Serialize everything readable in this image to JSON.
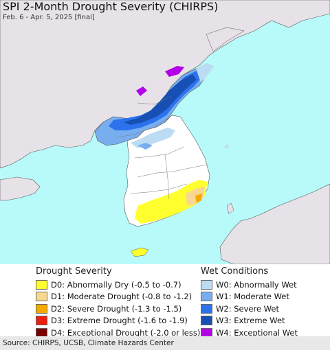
{
  "header": {
    "title": "SPI 2-Month Drought Severity (CHIRPS)",
    "subtitle": "Feb. 6 - Apr. 5, 2025 [final]"
  },
  "map_colors": {
    "sea": "#b8fafa",
    "land": "#e6e2e8",
    "w0": "#bcdcf4",
    "w1": "#78aef0",
    "w2": "#2c72ec",
    "w3": "#174fb4",
    "w4": "#b400e6",
    "d0": "#ffff30",
    "d1": "#f8d890",
    "d2": "#f5a800"
  },
  "legend_drought": {
    "title": "Drought Severity",
    "items": [
      {
        "label": "D0: Abnormally Dry (-0.5 to -0.7)",
        "color": "#ffff30"
      },
      {
        "label": "D1: Moderate Drought (-0.8 to -1.2)",
        "color": "#f8d890"
      },
      {
        "label": "D2: Severe Drought (-1.3 to -1.5)",
        "color": "#f5a800"
      },
      {
        "label": "D3: Extreme Drought (-1.6 to -1.9)",
        "color": "#e82010"
      },
      {
        "label": "D4: Exceptional Drought (-2.0 or less)",
        "color": "#7a0000"
      }
    ]
  },
  "legend_wet": {
    "title": "Wet Conditions",
    "items": [
      {
        "label": "W0: Abnormally Wet",
        "color": "#bcdcf4"
      },
      {
        "label": "W1: Moderate Wet",
        "color": "#78aef0"
      },
      {
        "label": "W2: Severe Wet",
        "color": "#2c72ec"
      },
      {
        "label": "W3: Extreme Wet",
        "color": "#174fb4"
      },
      {
        "label": "W4: Exceptional Wet",
        "color": "#b400e6"
      }
    ]
  },
  "footer": {
    "source": "Source: CHIRPS, UCSB, Climate Hazards Center"
  }
}
